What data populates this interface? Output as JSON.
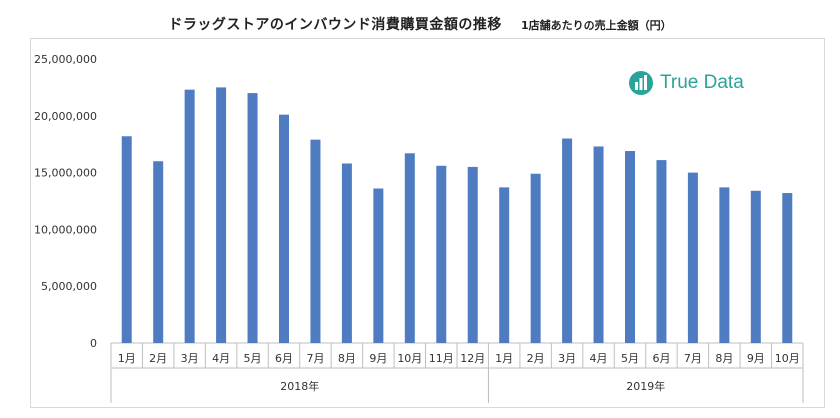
{
  "title": "ドラッグストアのインバウンド消費購買金額の推移",
  "subtitle": "1店舗あたりの売上金額（円）",
  "brand": {
    "name": "True Data",
    "color": "#2aa39a"
  },
  "chart_data": {
    "type": "bar",
    "title": "ドラッグストアのインバウンド消費購買金額の推移",
    "subtitle": "1店舗あたりの売上金額（円）",
    "ylim": [
      0,
      25000000
    ],
    "yticks": [
      0,
      5000000,
      10000000,
      15000000,
      20000000,
      25000000
    ],
    "ytick_labels": [
      "0",
      "5,000,000",
      "10,000,000",
      "15,000,000",
      "20,000,000",
      "25,000,000"
    ],
    "grid": false,
    "bar_color": "#4f7cc1",
    "groups": [
      {
        "label": "2018年",
        "categories": [
          "1月",
          "2月",
          "3月",
          "4月",
          "5月",
          "6月",
          "7月",
          "8月",
          "9月",
          "10月",
          "11月",
          "12月"
        ],
        "values": [
          18200000,
          16000000,
          22300000,
          22500000,
          22000000,
          20100000,
          17900000,
          15800000,
          13600000,
          16700000,
          15600000,
          15500000
        ]
      },
      {
        "label": "2019年",
        "categories": [
          "1月",
          "2月",
          "3月",
          "4月",
          "5月",
          "6月",
          "7月",
          "8月",
          "9月",
          "10月"
        ],
        "values": [
          13700000,
          14900000,
          18000000,
          17300000,
          16900000,
          16100000,
          15000000,
          13700000,
          13400000,
          13200000
        ]
      }
    ]
  }
}
